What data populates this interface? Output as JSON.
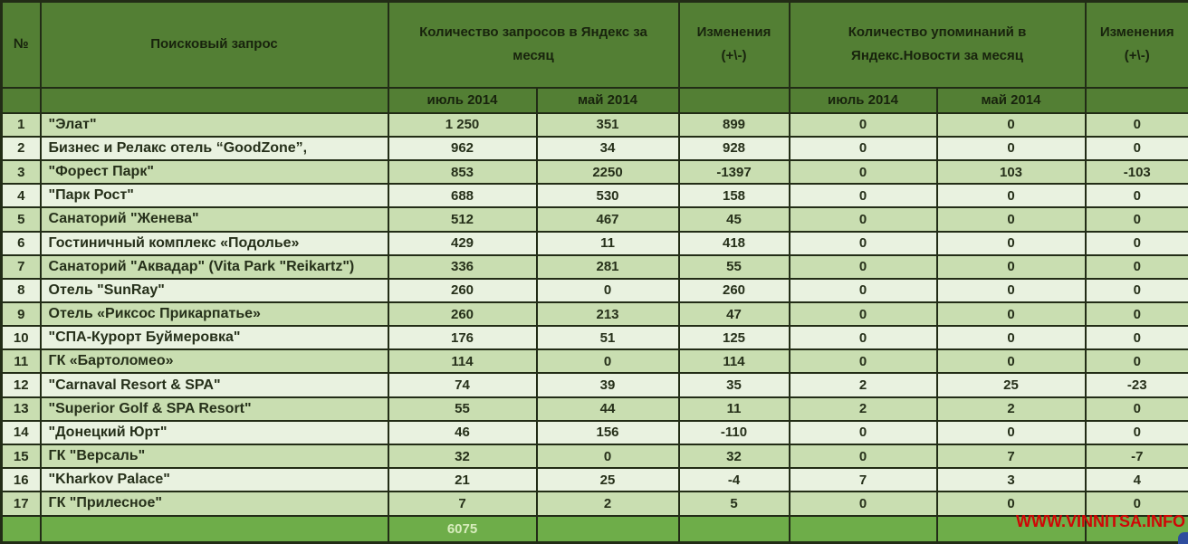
{
  "header": {
    "num": "№",
    "query": "Поисковый запрос",
    "queries_group": "Количество запросов в Яндекс за месяц",
    "changes1": "Изменения (+\\-)",
    "mentions_group": "Количество упоминаний в Яндекс.Новости за месяц",
    "changes2": "Изменения (+\\-)",
    "sub_queries_jul": "июль 2014",
    "sub_queries_may": "май 2014",
    "sub_mentions_jul": "июль 2014",
    "sub_mentions_may": "май 2014"
  },
  "chart_data": {
    "type": "table",
    "col_keys": [
      "num",
      "query",
      "q_jul",
      "q_may",
      "q_chg",
      "n_jul",
      "n_may",
      "n_chg"
    ],
    "columns": [
      "№",
      "Поисковый запрос",
      "Количество запросов в Яндекс за месяц: июль 2014",
      "Количество запросов в Яндекс за месяц: май 2014",
      "Изменения (+\\-)",
      "Количество упоминаний в Яндекс.Новости за месяц: июль 2014",
      "Количество упоминаний в Яндекс.Новости за месяц: май 2014",
      "Изменения (+\\-)"
    ],
    "rows": [
      [
        "1",
        "\"Элат\"",
        "1 250",
        "351",
        "899",
        "0",
        "0",
        "0"
      ],
      [
        "2",
        "Бизнес и Релакс отель “GoodZone”,",
        "962",
        "34",
        "928",
        "0",
        "0",
        "0"
      ],
      [
        "3",
        "\"Форест Парк\"",
        "853",
        "2250",
        "-1397",
        "0",
        "103",
        "-103"
      ],
      [
        "4",
        "\"Парк Рост\"",
        "688",
        "530",
        "158",
        "0",
        "0",
        "0"
      ],
      [
        "5",
        "Санаторий \"Женева\"",
        "512",
        "467",
        "45",
        "0",
        "0",
        "0"
      ],
      [
        "6",
        "Гостиничный комплекс «Подолье»",
        "429",
        "11",
        "418",
        "0",
        "0",
        "0"
      ],
      [
        "7",
        "Санаторий \"Аквадар\" (Vita Park \"Reikartz\")",
        "336",
        "281",
        "55",
        "0",
        "0",
        "0"
      ],
      [
        "8",
        "Отель \"SunRay\"",
        "260",
        "0",
        "260",
        "0",
        "0",
        "0"
      ],
      [
        "9",
        "Отель «Риксос Прикарпатье»",
        "260",
        "213",
        "47",
        "0",
        "0",
        "0"
      ],
      [
        "10",
        "\"СПА-Курорт Буймеровка\"",
        "176",
        "51",
        "125",
        "0",
        "0",
        "0"
      ],
      [
        "11",
        "ГК «Бартоломео»",
        "114",
        "0",
        "114",
        "0",
        "0",
        "0"
      ],
      [
        "12",
        "\"Carnaval Resort & SPA\"",
        "74",
        "39",
        "35",
        "2",
        "25",
        "-23"
      ],
      [
        "13",
        "\"Superior Golf & SPA Resort\"",
        "55",
        "44",
        "11",
        "2",
        "2",
        "0"
      ],
      [
        "14",
        "\"Донецкий Юрт\"",
        "46",
        "156",
        "-110",
        "0",
        "0",
        "0"
      ],
      [
        "15",
        "ГК \"Версаль\"",
        "32",
        "0",
        "32",
        "0",
        "7",
        "-7"
      ],
      [
        "16",
        "\"Kharkov Palace\"",
        "21",
        "25",
        "-4",
        "7",
        "3",
        "4"
      ],
      [
        "17",
        "ГК \"Прилесное\"",
        "7",
        "2",
        "5",
        "0",
        "0",
        "0"
      ]
    ],
    "total_queries_jul": "6075"
  },
  "footer": {
    "total": "6075"
  },
  "watermark": "WWW.VINNITSA.INFO",
  "colors": {
    "header_bg": "#537f34",
    "header_text": "#18230d",
    "row_odd": "#c9deb1",
    "row_even": "#e9f2e0",
    "cell_text": "#26301a",
    "footer_bg": "#6ead49",
    "total_text": "#d8edbd",
    "border": "#222c16",
    "watermark_red": "#d00606",
    "corner_blue": "#2e4d9e"
  }
}
